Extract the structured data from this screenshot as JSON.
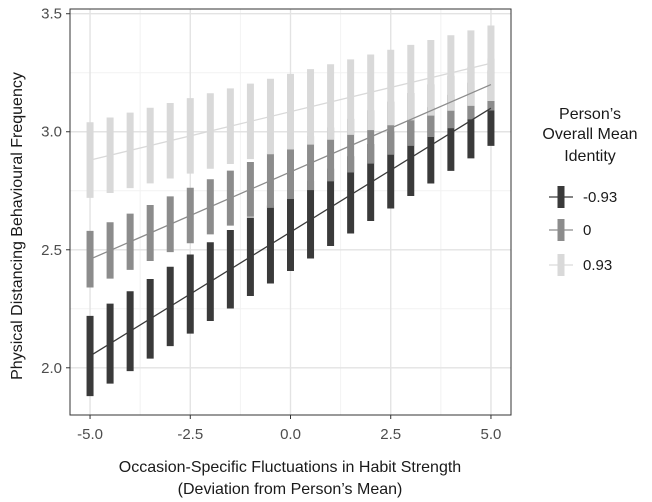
{
  "chart_data": {
    "type": "line",
    "xlabel_lines": [
      "Occasion-Specific Fluctuations in Habit Strength",
      "(Deviation from Person’s Mean)"
    ],
    "ylabel": "Physical Distancing Behavioural Frequency",
    "xlim": [
      -5.5,
      5.5
    ],
    "ylim": [
      1.8,
      3.52
    ],
    "x_ticks": [
      -5.0,
      -2.5,
      0.0,
      2.5,
      5.0
    ],
    "x_tick_labels": [
      "-5.0",
      "-2.5",
      "0.0",
      "2.5",
      "5.0"
    ],
    "y_ticks": [
      2.0,
      2.5,
      3.0,
      3.5
    ],
    "y_tick_labels": [
      "2.0",
      "2.5",
      "3.0",
      "3.5"
    ],
    "grid": true,
    "x_error_points": [
      -5.0,
      -4.5,
      -4.0,
      -3.5,
      -3.0,
      -2.5,
      -2.0,
      -1.5,
      -1.0,
      -0.5,
      0.0,
      0.5,
      1.0,
      1.5,
      2.0,
      2.5,
      3.0,
      3.5,
      4.0,
      4.5,
      5.0
    ],
    "legend": {
      "title_lines": [
        "Person’s",
        "Overall Mean",
        "Identity"
      ],
      "position": "right"
    },
    "series": [
      {
        "name": "-0.93",
        "color": "#3a3a3a",
        "y_start": 2.05,
        "y_end": 3.1,
        "ci_half_start": 0.17,
        "ci_half_end": 0.16
      },
      {
        "name": "0",
        "color": "#8c8c8c",
        "y_start": 2.46,
        "y_end": 3.2,
        "ci_half_start": 0.12,
        "ci_half_end": 0.11
      },
      {
        "name": "0.93",
        "color": "#d9d9d9",
        "y_start": 2.88,
        "y_end": 3.29,
        "ci_half_start": 0.16,
        "ci_half_end": 0.16
      }
    ]
  }
}
